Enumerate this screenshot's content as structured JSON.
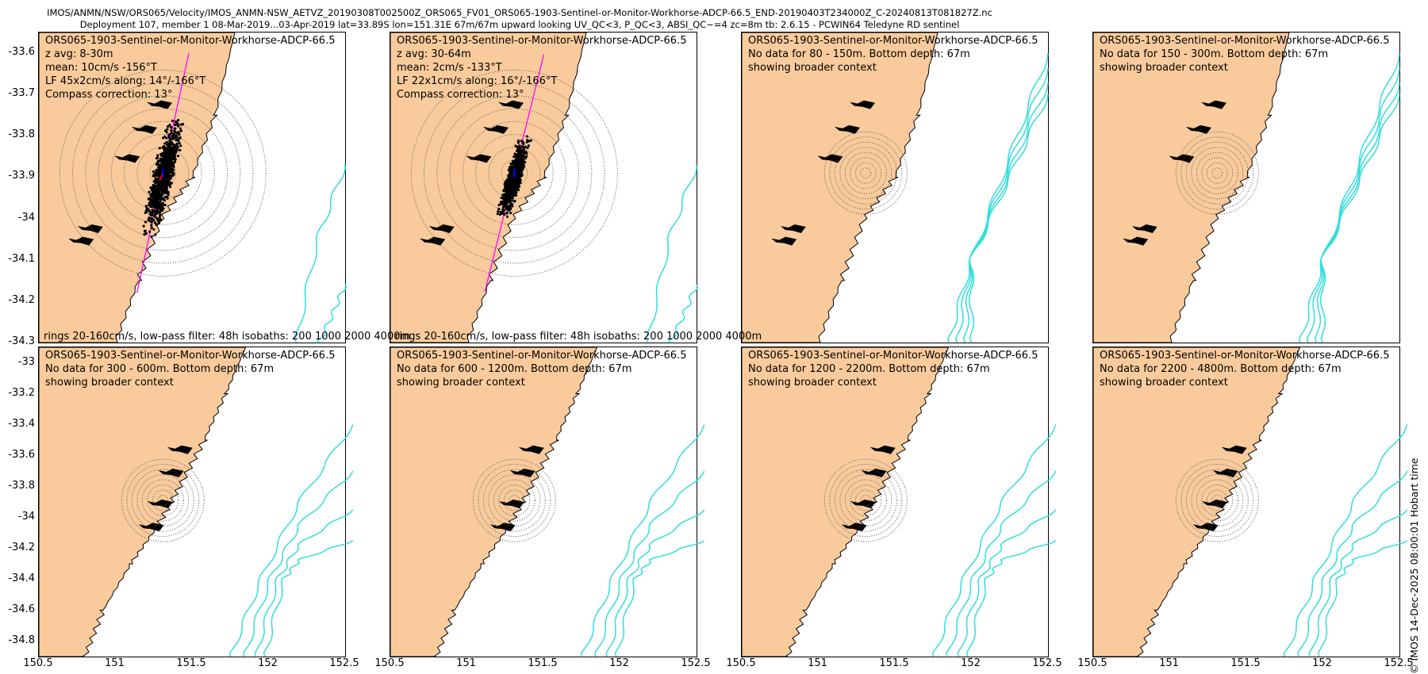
{
  "header": {
    "line1": "IMOS/ANMN/NSW/ORS065/Velocity/IMOS_ANMN-NSW_AETVZ_20190308T002500Z_ORS065_FV01_ORS065-1903-Sentinel-or-Monitor-Workhorse-ADCP-66.5_END-20190403T234000Z_C-20240813T081827Z.nc",
    "line2": "Deployment 107, member 1 08-Mar-2019...03-Apr-2019 lat=33.89S lon=151.31E 67m/67m upward looking UV_QC<3, P_QC<3, ABSI_QC~=4 zc=8m tb: 2.6.15 - PCWIN64 Teledyne RD sentinel"
  },
  "stamp": "© IMOS 14-Dec-2025 08:00:01 Hobart time",
  "colors": {
    "land": "#F9CB9C",
    "isobath": "#33DDDD",
    "axis_line": "#FF00FF",
    "scatter": "#000000",
    "mean_arrow": "#FF0000",
    "lf_arrow": "#0000FF"
  },
  "axes": {
    "row1_yticks": [
      "-33.6",
      "-33.7",
      "-33.8",
      "-33.9",
      "-34",
      "-34.1",
      "-34.2",
      "-34.3"
    ],
    "row2_yticks": [
      "-33",
      "-33.2",
      "-33.4",
      "-33.6",
      "-33.8",
      "-34",
      "-34.2",
      "-34.4",
      "-34.6",
      "-34.8"
    ],
    "xticks": [
      "150.5",
      "151",
      "151.5",
      "152",
      "152.5"
    ]
  },
  "chart_data": [
    {
      "type": "scatter",
      "title": "ORS065-1903-Sentinel-or-Monitor-Workhorse-ADCP-66.5",
      "lines": [
        "z avg: 8-30m",
        "mean: 10cm/s -156°T",
        "LF 45x2cm/s along: 14°/-166°T",
        "Compass correction: 13°"
      ],
      "footer": "rings 20-160cm/s, low-pass filter: 48h isobaths: 200 1000 2000 4000m",
      "xlim": [
        150.5,
        152.5
      ],
      "ylim": [
        -34.3,
        -33.55
      ],
      "rings_cm_s": [
        20,
        40,
        60,
        80,
        100,
        120,
        140,
        160
      ],
      "mean_speed_cm_s": 10,
      "mean_direction_degT": -156,
      "lf_major_cm_s": 45,
      "lf_minor_cm_s": 2,
      "lf_along_deg": 14
    },
    {
      "type": "scatter",
      "title": "ORS065-1903-Sentinel-or-Monitor-Workhorse-ADCP-66.5",
      "lines": [
        "z avg: 30-64m",
        "mean: 2cm/s -133°T",
        "LF 22x1cm/s along: 16°/-166°T",
        "Compass correction: 13°"
      ],
      "footer": "rings 20-160cm/s, low-pass filter: 48h isobaths: 200 1000 2000 4000m",
      "xlim": [
        150.5,
        152.5
      ],
      "ylim": [
        -34.3,
        -33.55
      ],
      "rings_cm_s": [
        20,
        40,
        60,
        80,
        100,
        120,
        140,
        160
      ],
      "mean_speed_cm_s": 2,
      "mean_direction_degT": -133,
      "lf_major_cm_s": 22,
      "lf_minor_cm_s": 1,
      "lf_along_deg": 16
    },
    {
      "type": "scatter",
      "title": "ORS065-1903-Sentinel-or-Monitor-Workhorse-ADCP-66.5",
      "lines": [
        "No data for 80 - 150m. Bottom depth: 67m",
        "showing broader context"
      ],
      "xlim": [
        150.5,
        152.5
      ],
      "ylim": [
        -34.3,
        -33.55
      ]
    },
    {
      "type": "scatter",
      "title": "ORS065-1903-Sentinel-or-Monitor-Workhorse-ADCP-66.5",
      "lines": [
        "No data for 150 - 300m. Bottom depth: 67m",
        "showing broader context"
      ],
      "xlim": [
        150.5,
        152.5
      ],
      "ylim": [
        -34.3,
        -33.55
      ]
    },
    {
      "type": "scatter",
      "title": "ORS065-1903-Sentinel-or-Monitor-Workhorse-ADCP-66.5",
      "lines": [
        "No data for 300 - 600m. Bottom depth: 67m",
        "showing broader context"
      ],
      "xlim": [
        150.5,
        152.5
      ],
      "ylim": [
        -34.9,
        -32.9
      ]
    },
    {
      "type": "scatter",
      "title": "ORS065-1903-Sentinel-or-Monitor-Workhorse-ADCP-66.5",
      "lines": [
        "No data for 600 - 1200m. Bottom depth: 67m",
        "showing broader context"
      ],
      "xlim": [
        150.5,
        152.5
      ],
      "ylim": [
        -34.9,
        -32.9
      ]
    },
    {
      "type": "scatter",
      "title": "ORS065-1903-Sentinel-or-Monitor-Workhorse-ADCP-66.5",
      "lines": [
        "No data for 1200 - 2200m. Bottom depth: 67m",
        "showing broader context"
      ],
      "xlim": [
        150.5,
        152.5
      ],
      "ylim": [
        -34.9,
        -32.9
      ]
    },
    {
      "type": "scatter",
      "title": "ORS065-1903-Sentinel-or-Monitor-Workhorse-ADCP-66.5",
      "lines": [
        "No data for 2200 - 4800m. Bottom depth: 67m",
        "showing broader context"
      ],
      "xlim": [
        150.5,
        152.5
      ],
      "ylim": [
        -34.9,
        -32.9
      ]
    }
  ]
}
